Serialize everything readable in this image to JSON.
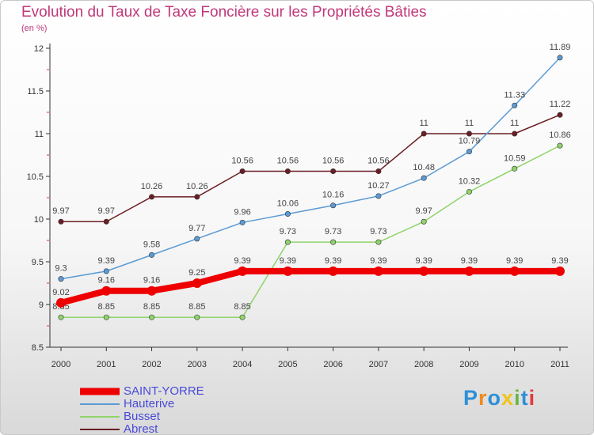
{
  "header": {
    "title": "Evolution du Taux de Taxe Foncière sur les Propriétés Bâties",
    "subtitle": "(en %)"
  },
  "chart_data": {
    "type": "line",
    "title": "Evolution du Taux de Taxe Foncière sur les Propriétés Bâties",
    "ylabel": "(en %)",
    "x": [
      "2000",
      "2001",
      "2002",
      "2003",
      "2004",
      "2005",
      "2006",
      "2007",
      "2008",
      "2009",
      "2010",
      "2011"
    ],
    "ylim": [
      8.5,
      12
    ],
    "yticks": [
      "8.5",
      "9",
      "9.5",
      "10",
      "10.5",
      "11",
      "11.5",
      "12"
    ],
    "grid": false,
    "legend_position": "bottom-left",
    "series": [
      {
        "name": "Abrest",
        "color": "#6b1e24",
        "labels": [
          "9.97",
          "9.97",
          "10.26",
          "10.26",
          "10.56",
          "10.56",
          "10.56",
          "10.56",
          "11",
          "11",
          "11",
          "11.22"
        ],
        "values": [
          9.97,
          9.97,
          10.26,
          10.26,
          10.56,
          10.56,
          10.56,
          10.56,
          11,
          11,
          11,
          11.22
        ]
      },
      {
        "name": "Busset",
        "color": "#8fd46a",
        "labels": [
          "8.85",
          "8.85",
          "8.85",
          "8.85",
          "8.85",
          "9.73",
          "9.73",
          "9.73",
          "9.97",
          "10.32",
          "10.59",
          "10.86"
        ],
        "values": [
          8.85,
          8.85,
          8.85,
          8.85,
          8.85,
          9.73,
          9.73,
          9.73,
          9.97,
          10.32,
          10.59,
          10.86
        ]
      },
      {
        "name": "Hauterive",
        "color": "#5b9bd5",
        "labels": [
          "9.3",
          "9.39",
          "9.58",
          "9.77",
          "9.96",
          "10.06",
          "10.16",
          "10.27",
          "10.48",
          "10.79",
          "11.33",
          "11.89"
        ],
        "values": [
          9.3,
          9.39,
          9.58,
          9.77,
          9.96,
          10.06,
          10.16,
          10.27,
          10.48,
          10.79,
          11.33,
          11.89
        ]
      },
      {
        "name": "SAINT-YORRE",
        "color": "#ee0000",
        "labels": [
          "9.02",
          "9.16",
          "9.16",
          "9.25",
          "9.39",
          "9.39",
          "9.39",
          "9.39",
          "9.39",
          "9.39",
          "9.39",
          "9.39"
        ],
        "values": [
          9.02,
          9.16,
          9.16,
          9.25,
          9.39,
          9.39,
          9.39,
          9.39,
          9.39,
          9.39,
          9.39,
          9.39
        ]
      }
    ]
  },
  "legend": {
    "items": [
      {
        "label": "SAINT-YORRE",
        "color": "#ee0000"
      },
      {
        "label": "Hauterive",
        "color": "#5b9bd5"
      },
      {
        "label": "Busset",
        "color": "#8fd46a"
      },
      {
        "label": "Abrest",
        "color": "#6b1e24"
      }
    ]
  },
  "logo": {
    "letters": [
      "P",
      "r",
      "o",
      "x",
      "i",
      "t",
      "i"
    ],
    "colors": [
      "#2d8fd8",
      "#f08a1e",
      "#2d8fd8",
      "#f0c419",
      "#67b743",
      "#2d8fd8",
      "#e23b3b"
    ]
  }
}
